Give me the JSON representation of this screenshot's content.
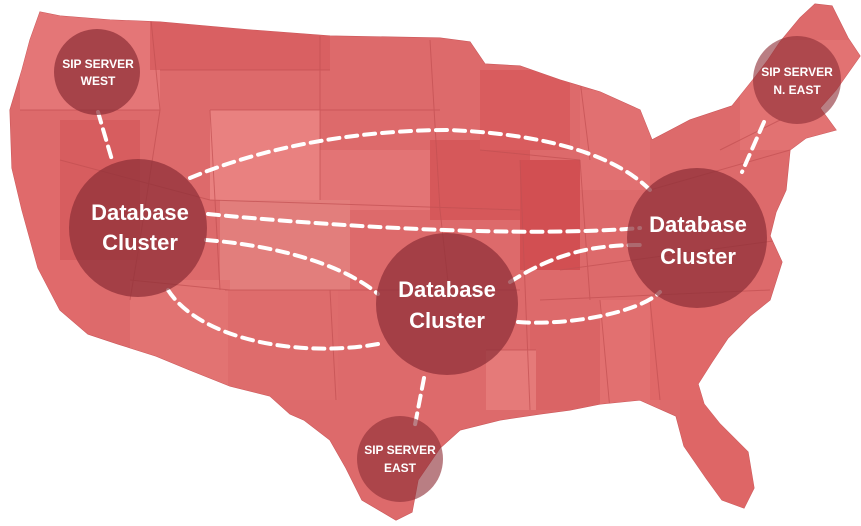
{
  "clusters": {
    "west": {
      "line1": "Database",
      "line2": "Cluster"
    },
    "central": {
      "line1": "Database",
      "line2": "Cluster"
    },
    "east": {
      "line1": "Database",
      "line2": "Cluster"
    }
  },
  "sip_servers": {
    "west": {
      "line1": "SIP SERVER",
      "line2": "WEST"
    },
    "northeast": {
      "line1": "SIP SERVER",
      "line2": "N. EAST"
    },
    "east": {
      "line1": "SIP SERVER",
      "line2": "EAST"
    }
  },
  "colors": {
    "map_base": "#dd6a6b",
    "map_light": "#e98180",
    "map_dark": "#d24f52",
    "state_border": "#c25052",
    "cluster_fill": "#8e2f37",
    "connector": "#ffffff"
  }
}
